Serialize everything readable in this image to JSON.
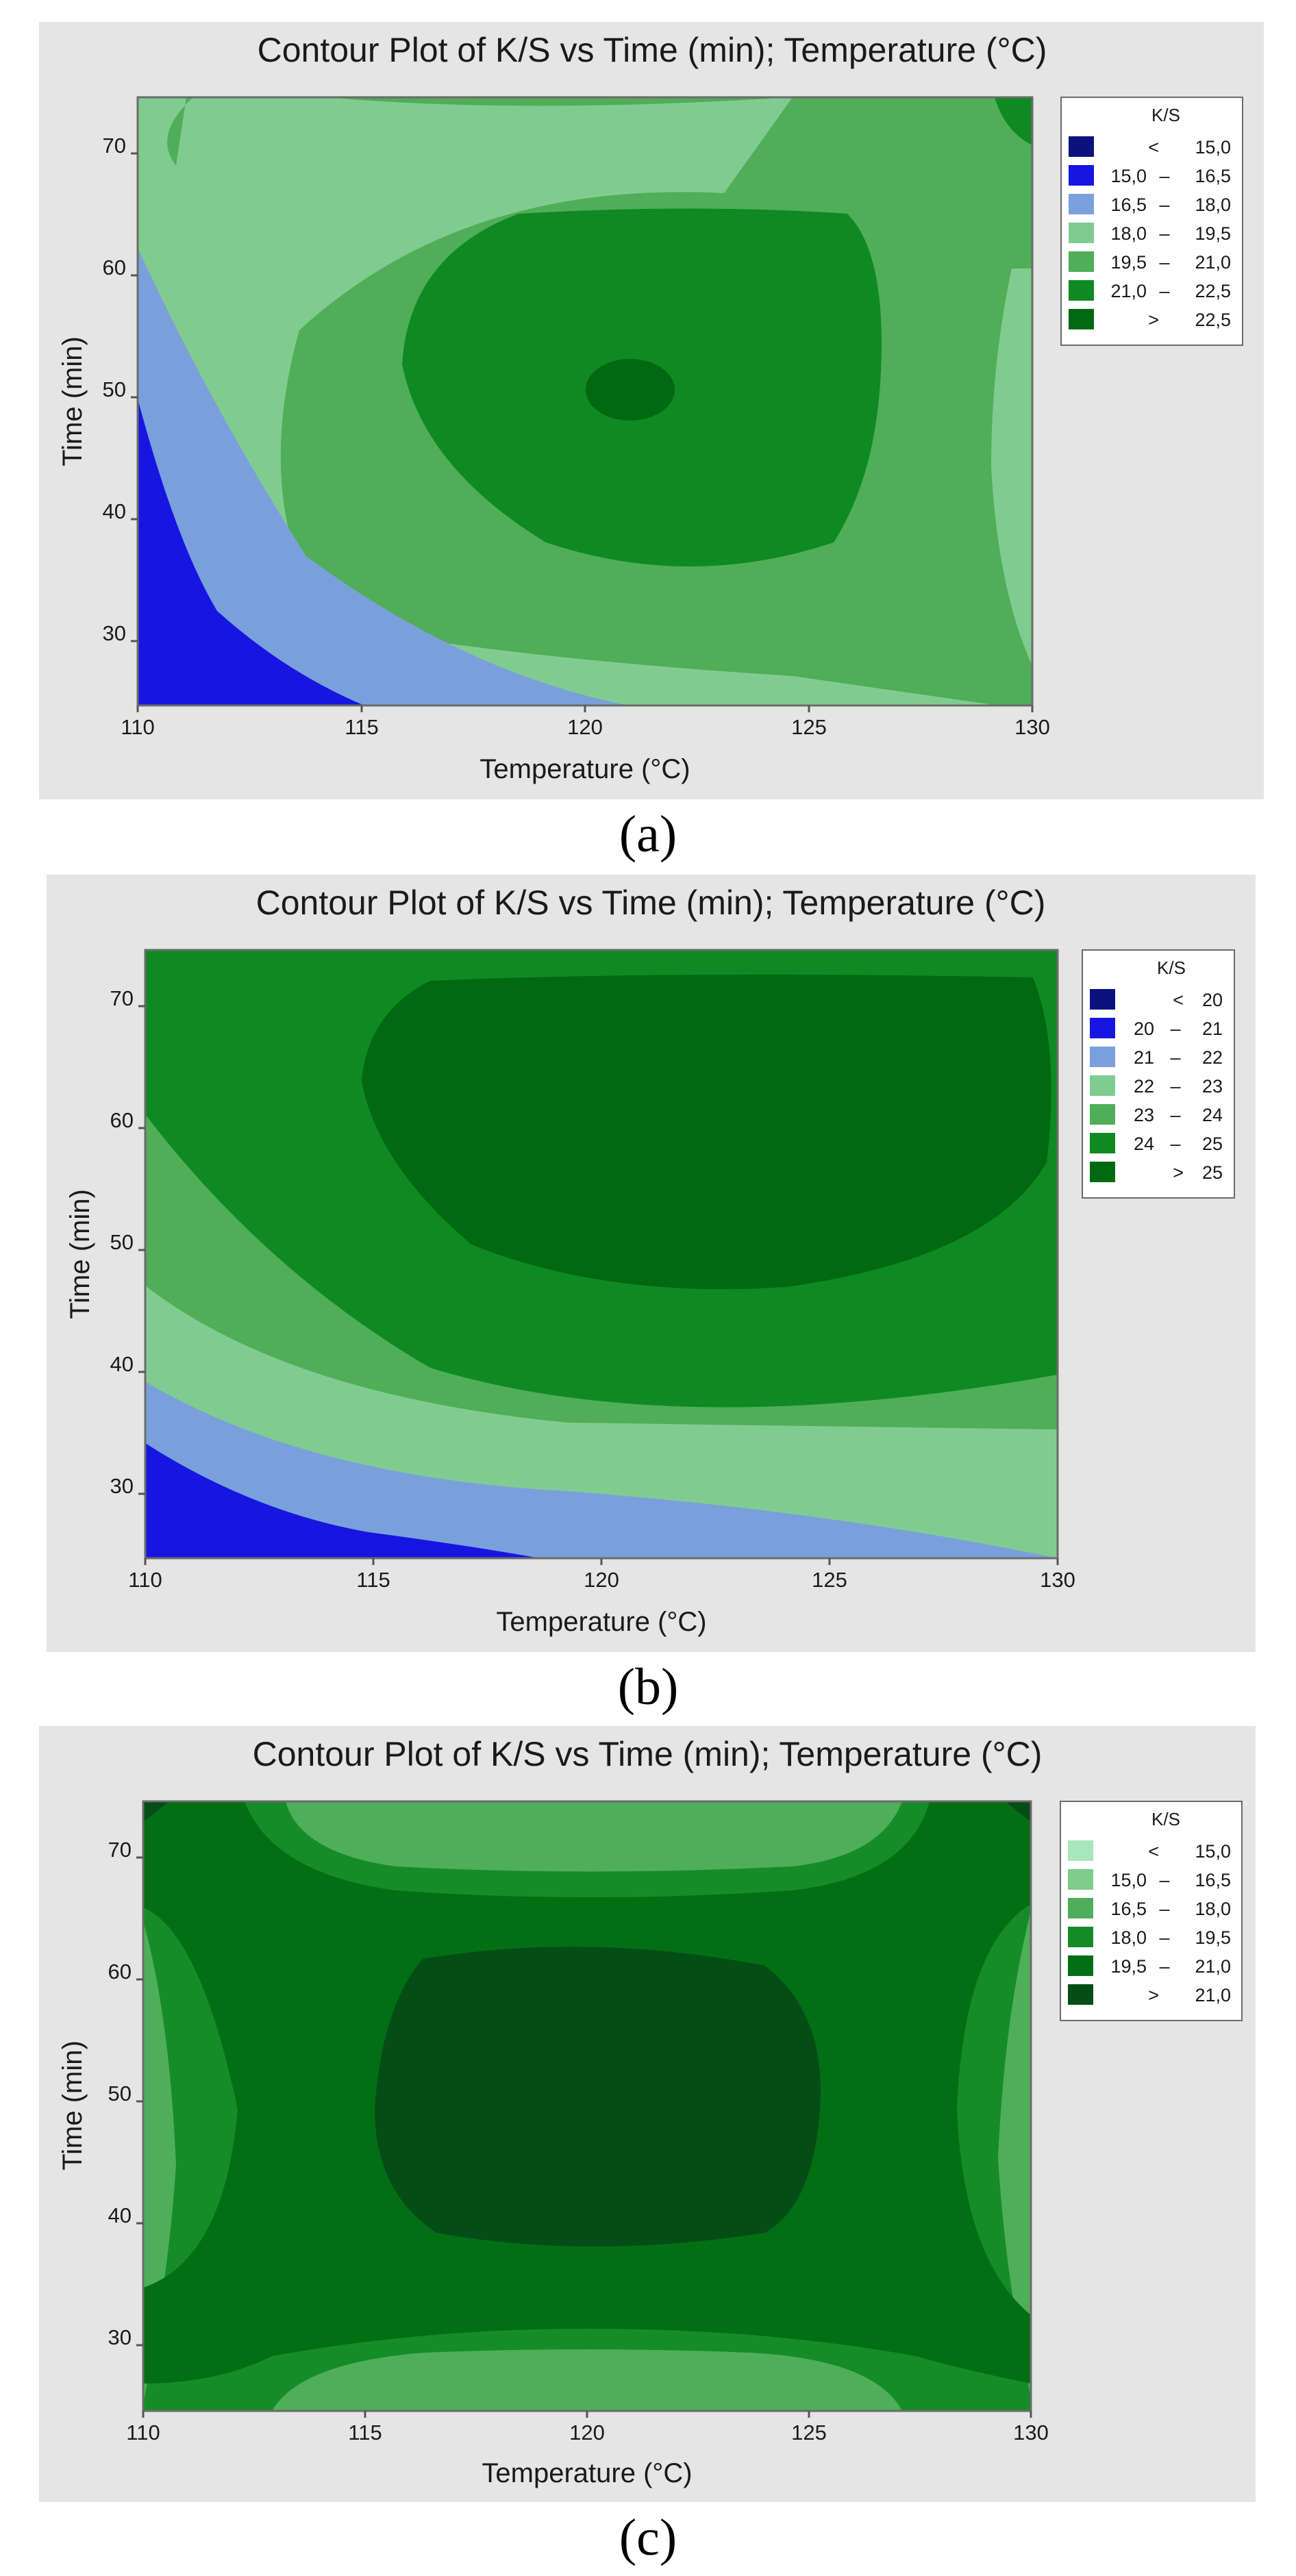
{
  "chart_data": [
    {
      "type": "contour",
      "title": "Contour Plot of K/S vs Time (min); Temperature (°C)",
      "xlabel": "Temperature (°C)",
      "ylabel": "Time (min)",
      "xlim": [
        110,
        130
      ],
      "ylim": [
        25,
        75
      ],
      "x_ticks": [
        "110",
        "115",
        "120",
        "125",
        "130"
      ],
      "y_ticks": [
        "30",
        "40",
        "50",
        "60",
        "70"
      ],
      "legend_title": "K/S",
      "legend": [
        {
          "lo": "<",
          "hi": "15,0",
          "color": "#0a127d"
        },
        {
          "lo": "15,0",
          "hi": "16,5",
          "color": "#1616e0"
        },
        {
          "lo": "16,5",
          "hi": "18,0",
          "color": "#7aa0dc"
        },
        {
          "lo": "18,0",
          "hi": "19,5",
          "color": "#80cc90"
        },
        {
          "lo": "19,5",
          "hi": "21,0",
          "color": "#50ae58"
        },
        {
          "lo": "21,0",
          "hi": "22,5",
          "color": "#0f8a22"
        },
        {
          "lo": ">",
          "hi": "22,5",
          "color": "#006912"
        }
      ],
      "caption": "(a)"
    },
    {
      "type": "contour",
      "title": "Contour Plot of K/S vs Time (min); Temperature (°C)",
      "xlabel": "Temperature (°C)",
      "ylabel": "Time (min)",
      "xlim": [
        110,
        130
      ],
      "ylim": [
        25,
        75
      ],
      "x_ticks": [
        "110",
        "115",
        "120",
        "125",
        "130"
      ],
      "y_ticks": [
        "30",
        "40",
        "50",
        "60",
        "70"
      ],
      "legend_title": "K/S",
      "legend": [
        {
          "lo": "<",
          "hi": "20",
          "color": "#0a127d"
        },
        {
          "lo": "20",
          "hi": "21",
          "color": "#1616e0"
        },
        {
          "lo": "21",
          "hi": "22",
          "color": "#7aa0dc"
        },
        {
          "lo": "22",
          "hi": "23",
          "color": "#80cc90"
        },
        {
          "lo": "23",
          "hi": "24",
          "color": "#50ae58"
        },
        {
          "lo": "24",
          "hi": "25",
          "color": "#0f8a22"
        },
        {
          "lo": ">",
          "hi": "25",
          "color": "#006912"
        }
      ],
      "caption": "(b)"
    },
    {
      "type": "contour",
      "title": "Contour Plot of K/S vs Time (min); Temperature (°C)",
      "xlabel": "Temperature (°C)",
      "ylabel": "Time (min)",
      "xlim": [
        110,
        130
      ],
      "ylim": [
        25,
        75
      ],
      "x_ticks": [
        "110",
        "115",
        "120",
        "125",
        "130"
      ],
      "y_ticks": [
        "30",
        "40",
        "50",
        "60",
        "70"
      ],
      "legend_title": "K/S",
      "legend": [
        {
          "lo": "<",
          "hi": "15,0",
          "color": "#a8e6bc"
        },
        {
          "lo": "15,0",
          "hi": "16,5",
          "color": "#7ecb8c"
        },
        {
          "lo": "16,5",
          "hi": "18,0",
          "color": "#4fae5a"
        },
        {
          "lo": "18,0",
          "hi": "19,5",
          "color": "#168c28"
        },
        {
          "lo": "19,5",
          "hi": "21,0",
          "color": "#036f15"
        },
        {
          "lo": ">",
          "hi": "21,0",
          "color": "#054d16"
        }
      ],
      "caption": "(c)"
    }
  ]
}
